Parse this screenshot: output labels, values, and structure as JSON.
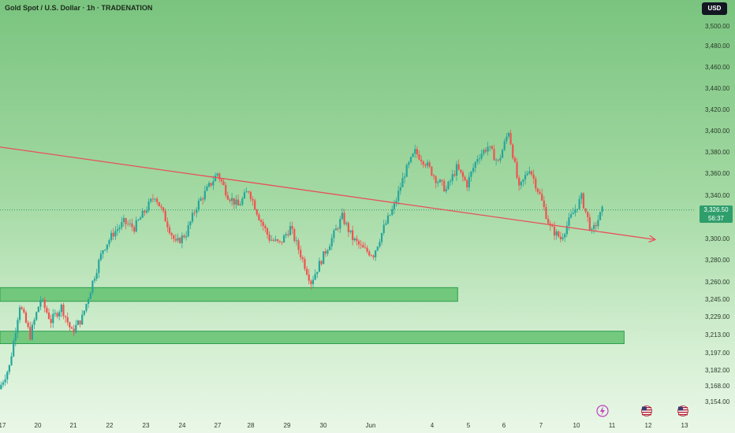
{
  "header": {
    "title": "Gold Spot / U.S. Dollar · 1h · TRADENATION",
    "currency_button": "USD"
  },
  "last_price": {
    "value": "3,326.50",
    "countdown": "56:37"
  },
  "colors": {
    "up": "#26a69a",
    "down": "#ef5350",
    "trendline": "#e8505a",
    "zone_fill": "#5cbf6a",
    "zone_stroke": "#2e9e4e",
    "price_tag": "#2e9e6b"
  },
  "chart_data": {
    "type": "candlestick",
    "title": "Gold Spot / U.S. Dollar · 1h · TRADENATION",
    "ylim": [
      3145,
      3520
    ],
    "y_ticks": [
      "3,500.00",
      "3,480.00",
      "3,460.00",
      "3,440.00",
      "3,420.00",
      "3,400.00",
      "3,380.00",
      "3,360.00",
      "3,340.00",
      "3,300.00",
      "3,280.00",
      "3,260.00",
      "3,245.00",
      "3,229.00",
      "3,213.00",
      "3,197.00",
      "3,182.00",
      "3,168.00",
      "3,154.00"
    ],
    "y_tick_values": [
      3500,
      3480,
      3460,
      3440,
      3420,
      3400,
      3380,
      3360,
      3340,
      3300,
      3280,
      3260,
      3245,
      3229,
      3213,
      3197,
      3182,
      3168,
      3154
    ],
    "x_ticks": [
      "17",
      "20",
      "21",
      "22",
      "23",
      "24",
      "27",
      "28",
      "29",
      "30",
      "Jun",
      "4",
      "5",
      "6",
      "7",
      "10",
      "11",
      "12",
      "13"
    ],
    "price_path": [
      [
        0,
        3165
      ],
      [
        1,
        3185
      ],
      [
        2,
        3240
      ],
      [
        3,
        3212
      ],
      [
        4,
        3245
      ],
      [
        5,
        3225
      ],
      [
        6,
        3238
      ],
      [
        7,
        3215
      ],
      [
        8,
        3228
      ],
      [
        9,
        3260
      ],
      [
        10,
        3290
      ],
      [
        11,
        3305
      ],
      [
        12,
        3315
      ],
      [
        13,
        3310
      ],
      [
        14,
        3325
      ],
      [
        15,
        3340
      ],
      [
        16,
        3318
      ],
      [
        17,
        3295
      ],
      [
        18,
        3305
      ],
      [
        19,
        3330
      ],
      [
        20,
        3345
      ],
      [
        21,
        3360
      ],
      [
        22,
        3340
      ],
      [
        23,
        3330
      ],
      [
        24,
        3345
      ],
      [
        25,
        3320
      ],
      [
        26,
        3300
      ],
      [
        27,
        3295
      ],
      [
        28,
        3310
      ],
      [
        29,
        3285
      ],
      [
        30,
        3260
      ],
      [
        31,
        3280
      ],
      [
        32,
        3300
      ],
      [
        33,
        3320
      ],
      [
        34,
        3300
      ],
      [
        35,
        3290
      ],
      [
        36,
        3285
      ],
      [
        37,
        3310
      ],
      [
        38,
        3330
      ],
      [
        39,
        3360
      ],
      [
        40,
        3380
      ],
      [
        41,
        3370
      ],
      [
        42,
        3355
      ],
      [
        43,
        3345
      ],
      [
        44,
        3365
      ],
      [
        45,
        3350
      ],
      [
        46,
        3375
      ],
      [
        47,
        3385
      ],
      [
        48,
        3370
      ],
      [
        49,
        3400
      ],
      [
        50,
        3345
      ],
      [
        51,
        3365
      ],
      [
        52,
        3340
      ],
      [
        53,
        3310
      ],
      [
        54,
        3300
      ],
      [
        55,
        3320
      ],
      [
        56,
        3338
      ],
      [
        57,
        3305
      ],
      [
        58,
        3326
      ]
    ],
    "trendline": {
      "start": [
        -1,
        3386
      ],
      "end": [
        63,
        3299
      ]
    },
    "support_zones": [
      {
        "from": 3243,
        "to": 3255,
        "x_end": 44
      },
      {
        "from": 3205,
        "to": 3216,
        "x_end": 60
      }
    ],
    "last_price": 3326.5,
    "grid": false
  }
}
